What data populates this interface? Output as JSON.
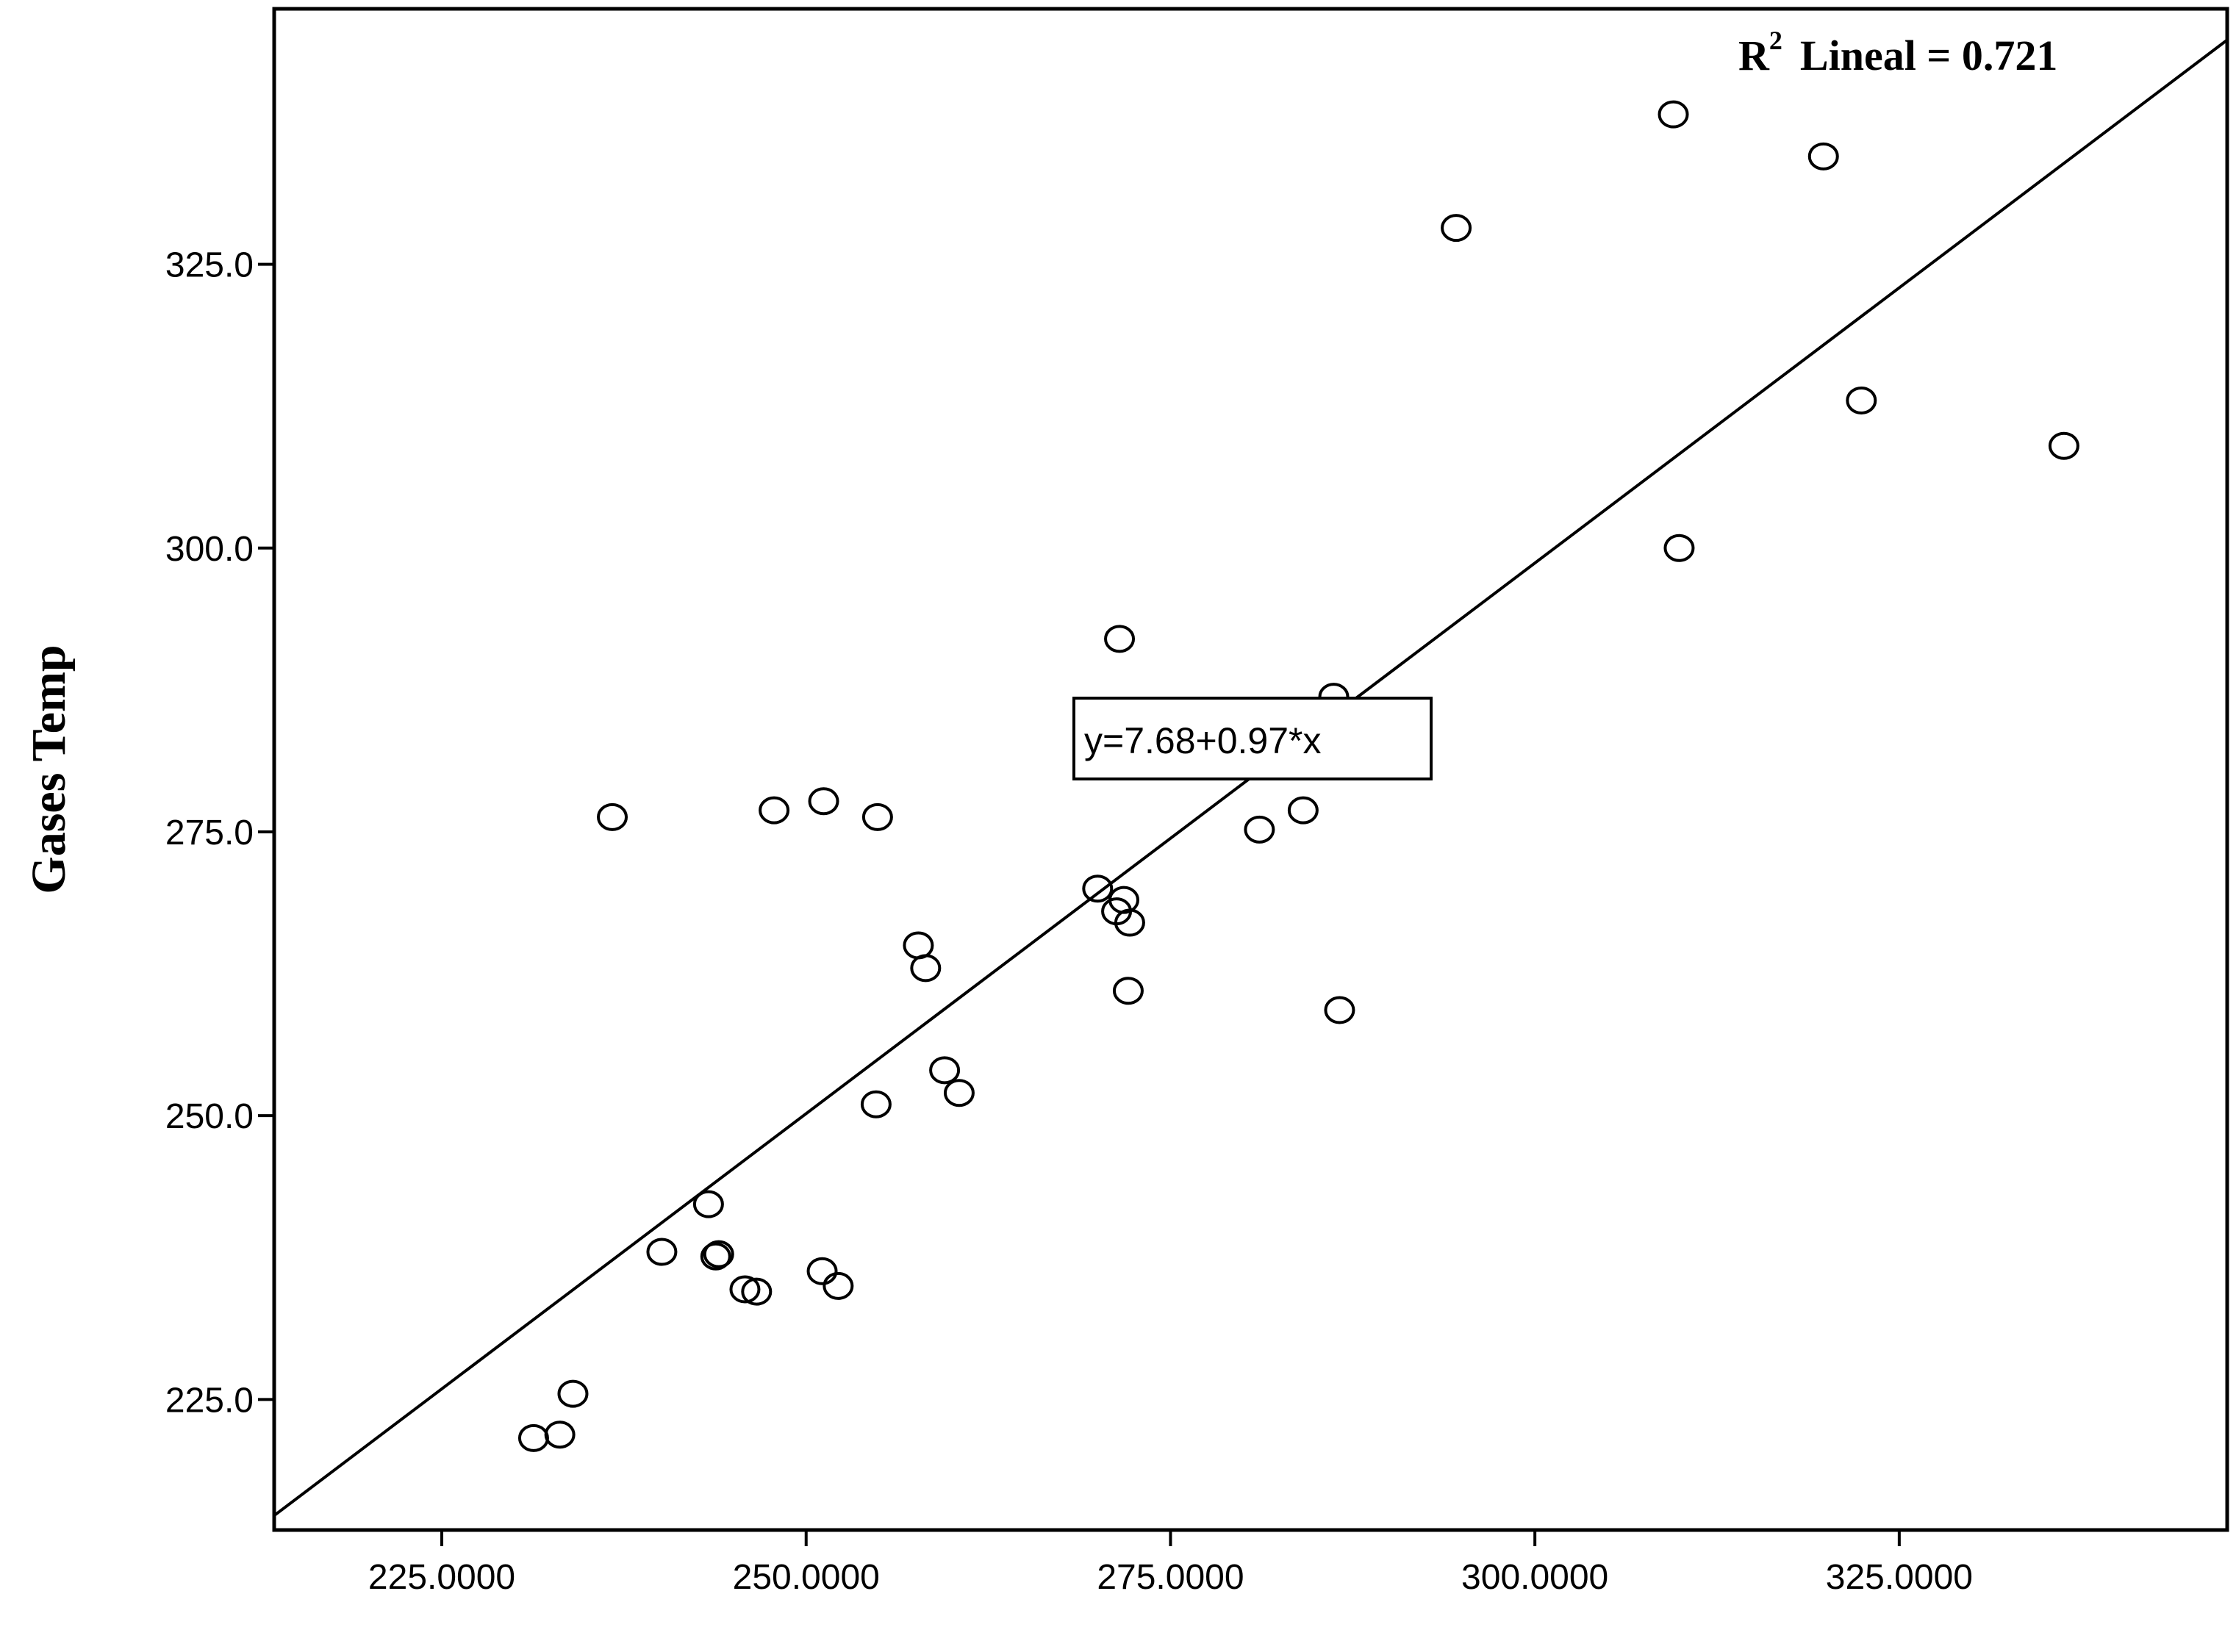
{
  "chart_data": {
    "type": "scatter",
    "title": "",
    "xlabel": "",
    "ylabel": "Gases Temp",
    "xlim": [
      213.5,
      347.5
    ],
    "ylim": [
      213.5,
      347.5
    ],
    "x_ticks": [
      "225.0000",
      "250.0000",
      "275.0000",
      "300.0000",
      "325.0000"
    ],
    "x_tick_values": [
      225,
      250,
      275,
      300,
      325
    ],
    "y_ticks": [
      "225.0",
      "250.0",
      "275.0",
      "300.0",
      "325.0"
    ],
    "y_tick_values": [
      225,
      250,
      275,
      300,
      325
    ],
    "grid": false,
    "fit_line": {
      "intercept": 7.68,
      "slope": 0.97,
      "equation_label": "y=7.68+0.97*x"
    },
    "r2_label": {
      "prefix": "R",
      "superscript": "2",
      "text": "Lineal = 0.721"
    },
    "points": [
      {
        "x": 231.3,
        "y": 221.6
      },
      {
        "x": 233.1,
        "y": 221.9
      },
      {
        "x": 234.0,
        "y": 225.5
      },
      {
        "x": 236.7,
        "y": 276.3
      },
      {
        "x": 240.1,
        "y": 238.0
      },
      {
        "x": 243.3,
        "y": 242.2
      },
      {
        "x": 243.8,
        "y": 237.6
      },
      {
        "x": 244.0,
        "y": 237.8
      },
      {
        "x": 245.8,
        "y": 234.7
      },
      {
        "x": 246.6,
        "y": 234.5
      },
      {
        "x": 247.8,
        "y": 276.9
      },
      {
        "x": 251.1,
        "y": 236.3
      },
      {
        "x": 251.2,
        "y": 277.7
      },
      {
        "x": 252.2,
        "y": 235.0
      },
      {
        "x": 254.8,
        "y": 251.0
      },
      {
        "x": 254.9,
        "y": 276.3
      },
      {
        "x": 257.7,
        "y": 265.0
      },
      {
        "x": 258.2,
        "y": 263.0
      },
      {
        "x": 259.5,
        "y": 254.0
      },
      {
        "x": 260.5,
        "y": 252.0
      },
      {
        "x": 270.0,
        "y": 270.0
      },
      {
        "x": 271.3,
        "y": 268.0
      },
      {
        "x": 271.5,
        "y": 292.0
      },
      {
        "x": 271.8,
        "y": 269.0
      },
      {
        "x": 272.1,
        "y": 261.0
      },
      {
        "x": 272.2,
        "y": 267.0
      },
      {
        "x": 281.1,
        "y": 275.2
      },
      {
        "x": 284.1,
        "y": 276.9
      },
      {
        "x": 286.2,
        "y": 286.9
      },
      {
        "x": 286.6,
        "y": 259.3
      },
      {
        "x": 294.6,
        "y": 328.2
      },
      {
        "x": 309.5,
        "y": 338.2
      },
      {
        "x": 309.9,
        "y": 300.0
      },
      {
        "x": 319.8,
        "y": 334.5
      },
      {
        "x": 322.4,
        "y": 313.0
      },
      {
        "x": 336.3,
        "y": 309.0
      }
    ]
  }
}
